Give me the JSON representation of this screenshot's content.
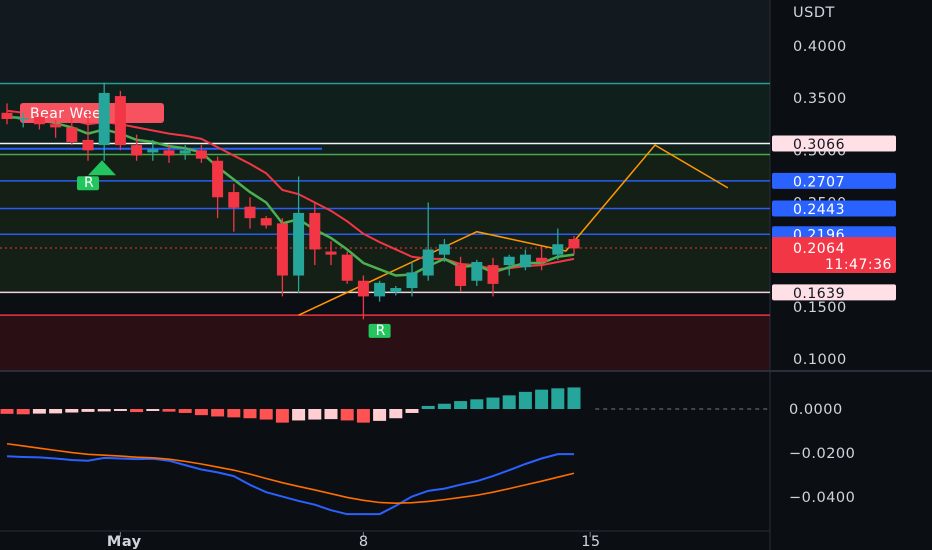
{
  "colors": {
    "background": "#0b0e13",
    "bull_candle": "#26a69a",
    "bear_candle": "#f23645",
    "ema_fast": "#4caf50",
    "ema_slow": "#f23645",
    "forecast_line": "#ff9800",
    "macd_line": "#2962ff",
    "signal_line": "#ff6d00",
    "hist_pos_rising": "#26a69a",
    "hist_pos_falling": "#b2dfdb",
    "hist_neg_falling": "#ff5252",
    "hist_neg_rising": "#ffcdd2"
  },
  "price_axis": {
    "currency": "USDT",
    "ticks": [
      {
        "value": 0.4,
        "label": "0.4000"
      },
      {
        "value": 0.35,
        "label": "0.3500"
      },
      {
        "value": 0.15,
        "label": "0.1500"
      },
      {
        "value": 0.1,
        "label": "0.1000"
      }
    ],
    "range": [
      0.095,
      0.425
    ]
  },
  "price_tags": [
    {
      "value": 0.3066,
      "label": "0.3066",
      "bg": "#ffe0e6",
      "fg": "#131722"
    },
    {
      "value": 0.2707,
      "label": "0.2707",
      "bg": "#2962ff",
      "fg": "#ffffff"
    },
    {
      "value": 0.2443,
      "label": "0.2443",
      "bg": "#2962ff",
      "fg": "#ffffff"
    },
    {
      "value": 0.2196,
      "label": "0.2196",
      "bg": "#2962ff",
      "fg": "#ffffff"
    },
    {
      "value": 0.1639,
      "label": "0.1639",
      "bg": "#ffe0e6",
      "fg": "#131722"
    }
  ],
  "last_price": {
    "value": 0.2064,
    "label": "0.2064",
    "countdown": "11:47:36",
    "bg": "#f23645"
  },
  "time_axis": {
    "labels": [
      {
        "index": 7,
        "label": "May",
        "bold": true
      },
      {
        "index": 22,
        "label": "8",
        "bold": false
      },
      {
        "index": 36,
        "label": "15",
        "bold": false
      }
    ]
  },
  "annotations": {
    "bear_week_label": "Bear Week",
    "r_markers": [
      {
        "index": 5,
        "value": 0.279,
        "label": "R"
      },
      {
        "index": 23,
        "value": 0.1375,
        "label": "R"
      }
    ]
  },
  "macd_axis": {
    "ticks": [
      {
        "value": 0.0,
        "label": "0.0000"
      },
      {
        "value": -0.02,
        "label": "−0.0200"
      },
      {
        "value": -0.04,
        "label": "−0.0400"
      }
    ],
    "range": [
      -0.05,
      0.008
    ]
  },
  "chart_data": {
    "type": "candlestick",
    "symbol_currency": "USDT",
    "candles": [
      {
        "o": 0.336,
        "h": 0.345,
        "l": 0.325,
        "c": 0.33
      },
      {
        "o": 0.33,
        "h": 0.336,
        "l": 0.322,
        "c": 0.331
      },
      {
        "o": 0.332,
        "h": 0.336,
        "l": 0.32,
        "c": 0.325
      },
      {
        "o": 0.325,
        "h": 0.329,
        "l": 0.312,
        "c": 0.322
      },
      {
        "o": 0.322,
        "h": 0.333,
        "l": 0.305,
        "c": 0.308
      },
      {
        "o": 0.31,
        "h": 0.338,
        "l": 0.29,
        "c": 0.3
      },
      {
        "o": 0.305,
        "h": 0.365,
        "l": 0.29,
        "c": 0.355
      },
      {
        "o": 0.352,
        "h": 0.357,
        "l": 0.3,
        "c": 0.305
      },
      {
        "o": 0.305,
        "h": 0.315,
        "l": 0.29,
        "c": 0.295
      },
      {
        "o": 0.298,
        "h": 0.31,
        "l": 0.29,
        "c": 0.301
      },
      {
        "o": 0.3,
        "h": 0.305,
        "l": 0.288,
        "c": 0.295
      },
      {
        "o": 0.297,
        "h": 0.305,
        "l": 0.291,
        "c": 0.3
      },
      {
        "o": 0.3,
        "h": 0.305,
        "l": 0.288,
        "c": 0.292
      },
      {
        "o": 0.29,
        "h": 0.294,
        "l": 0.235,
        "c": 0.255
      },
      {
        "o": 0.26,
        "h": 0.268,
        "l": 0.222,
        "c": 0.245
      },
      {
        "o": 0.246,
        "h": 0.255,
        "l": 0.225,
        "c": 0.235
      },
      {
        "o": 0.235,
        "h": 0.237,
        "l": 0.225,
        "c": 0.228
      },
      {
        "o": 0.23,
        "h": 0.235,
        "l": 0.16,
        "c": 0.18
      },
      {
        "o": 0.18,
        "h": 0.275,
        "l": 0.163,
        "c": 0.24
      },
      {
        "o": 0.24,
        "h": 0.25,
        "l": 0.19,
        "c": 0.205
      },
      {
        "o": 0.203,
        "h": 0.213,
        "l": 0.19,
        "c": 0.2
      },
      {
        "o": 0.2,
        "h": 0.203,
        "l": 0.172,
        "c": 0.175
      },
      {
        "o": 0.175,
        "h": 0.18,
        "l": 0.138,
        "c": 0.16
      },
      {
        "o": 0.16,
        "h": 0.175,
        "l": 0.155,
        "c": 0.173
      },
      {
        "o": 0.164,
        "h": 0.17,
        "l": 0.161,
        "c": 0.168
      },
      {
        "o": 0.168,
        "h": 0.193,
        "l": 0.16,
        "c": 0.183
      },
      {
        "o": 0.18,
        "h": 0.25,
        "l": 0.175,
        "c": 0.205
      },
      {
        "o": 0.2,
        "h": 0.215,
        "l": 0.193,
        "c": 0.21
      },
      {
        "o": 0.19,
        "h": 0.198,
        "l": 0.165,
        "c": 0.17
      },
      {
        "o": 0.175,
        "h": 0.195,
        "l": 0.17,
        "c": 0.193
      },
      {
        "o": 0.19,
        "h": 0.197,
        "l": 0.16,
        "c": 0.172
      },
      {
        "o": 0.19,
        "h": 0.2,
        "l": 0.18,
        "c": 0.198
      },
      {
        "o": 0.188,
        "h": 0.205,
        "l": 0.185,
        "c": 0.2
      },
      {
        "o": 0.197,
        "h": 0.208,
        "l": 0.185,
        "c": 0.193
      },
      {
        "o": 0.2,
        "h": 0.225,
        "l": 0.195,
        "c": 0.21
      },
      {
        "o": 0.215,
        "h": 0.218,
        "l": 0.2,
        "c": 0.206
      }
    ],
    "ema_fast": [
      0.332,
      0.331,
      0.329,
      0.326,
      0.322,
      0.316,
      0.32,
      0.316,
      0.31,
      0.308,
      0.304,
      0.302,
      0.298,
      0.284,
      0.272,
      0.26,
      0.25,
      0.23,
      0.234,
      0.224,
      0.216,
      0.205,
      0.192,
      0.186,
      0.18,
      0.181,
      0.189,
      0.196,
      0.188,
      0.19,
      0.183,
      0.188,
      0.192,
      0.192,
      0.198,
      0.2
    ],
    "ema_slow": [
      0.338,
      0.336,
      0.334,
      0.332,
      0.329,
      0.325,
      0.327,
      0.325,
      0.322,
      0.319,
      0.316,
      0.314,
      0.311,
      0.303,
      0.295,
      0.287,
      0.278,
      0.262,
      0.258,
      0.25,
      0.242,
      0.232,
      0.22,
      0.212,
      0.205,
      0.198,
      0.196,
      0.196,
      0.191,
      0.19,
      0.186,
      0.187,
      0.189,
      0.19,
      0.193,
      0.196
    ],
    "horizontal_levels": [
      {
        "value": 0.364,
        "color": "#26a69a",
        "label": ""
      },
      {
        "value": 0.3066,
        "color": "#ffffff",
        "label": "0.3066"
      },
      {
        "value": 0.296,
        "color": "#4caf50",
        "label": ""
      },
      {
        "value": 0.2707,
        "color": "#2962ff",
        "label": "0.2707"
      },
      {
        "value": 0.2443,
        "color": "#2962ff",
        "label": "0.2443"
      },
      {
        "value": 0.2196,
        "color": "#2962ff",
        "label": "0.2196"
      },
      {
        "value": 0.1639,
        "color": "#ffe0e6",
        "label": "0.1639"
      },
      {
        "value": 0.142,
        "color": "#f23645",
        "label": ""
      }
    ],
    "forecast_path": [
      {
        "index": 18,
        "value": 0.142
      },
      {
        "index": 29,
        "value": 0.222
      },
      {
        "index": 34.5,
        "value": 0.2035
      },
      {
        "index": 40,
        "value": 0.305
      },
      {
        "index": 44.5,
        "value": 0.264
      }
    ],
    "macd": {
      "histogram": [
        -0.0022,
        -0.0024,
        -0.0021,
        -0.002,
        -0.0016,
        -0.0013,
        -0.0011,
        -0.0009,
        -0.0014,
        -0.0009,
        -0.0012,
        -0.0018,
        -0.0028,
        -0.0034,
        -0.0038,
        -0.0042,
        -0.0048,
        -0.0062,
        -0.0052,
        -0.0048,
        -0.0046,
        -0.0052,
        -0.0062,
        -0.0054,
        -0.0042,
        -0.0018,
        0.0014,
        0.0024,
        0.0036,
        0.0044,
        0.0052,
        0.0062,
        0.0078,
        0.0088,
        0.0094,
        0.0098
      ],
      "macd_line": [
        -0.0215,
        -0.0218,
        -0.022,
        -0.0225,
        -0.0232,
        -0.0235,
        -0.0222,
        -0.0225,
        -0.0228,
        -0.0226,
        -0.0235,
        -0.0255,
        -0.0275,
        -0.0288,
        -0.0305,
        -0.0345,
        -0.0378,
        -0.0398,
        -0.0418,
        -0.0435,
        -0.046,
        -0.0478,
        -0.0478,
        -0.0478,
        -0.044,
        -0.0398,
        -0.0372,
        -0.0362,
        -0.0344,
        -0.0328,
        -0.0305,
        -0.0278,
        -0.025,
        -0.0225,
        -0.0205,
        -0.0205
      ],
      "signal_line": [
        -0.0158,
        -0.0168,
        -0.0178,
        -0.0188,
        -0.0198,
        -0.0206,
        -0.021,
        -0.0214,
        -0.0219,
        -0.0222,
        -0.0228,
        -0.0238,
        -0.025,
        -0.0264,
        -0.0278,
        -0.0296,
        -0.0316,
        -0.0335,
        -0.0352,
        -0.0368,
        -0.0385,
        -0.0402,
        -0.0415,
        -0.0425,
        -0.0428,
        -0.0426,
        -0.042,
        -0.0412,
        -0.0402,
        -0.0392,
        -0.0378,
        -0.0362,
        -0.0345,
        -0.0328,
        -0.031,
        -0.0292
      ]
    }
  }
}
